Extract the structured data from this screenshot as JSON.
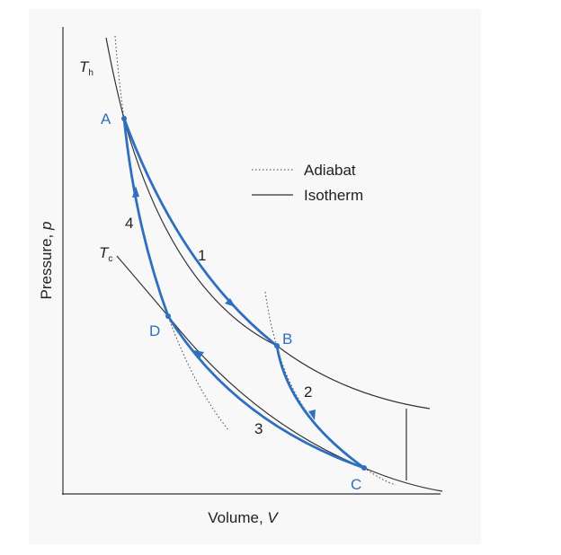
{
  "points": {
    "a": "A",
    "b": "B",
    "c": "C",
    "d": "D"
  },
  "steps": [
    "1",
    "2",
    "3",
    "4"
  ],
  "isotherms": {
    "hot": {
      "symbol": "T",
      "subscript": "h"
    },
    "cold": {
      "symbol": "T",
      "subscript": "c"
    }
  },
  "legend": {
    "adiabat": "Adiabat",
    "isotherm": "Isotherm"
  },
  "axes": {
    "x": {
      "label": "Volume, ",
      "variable": "V"
    },
    "y": {
      "label": "Pressure, ",
      "variable": "p"
    }
  }
}
